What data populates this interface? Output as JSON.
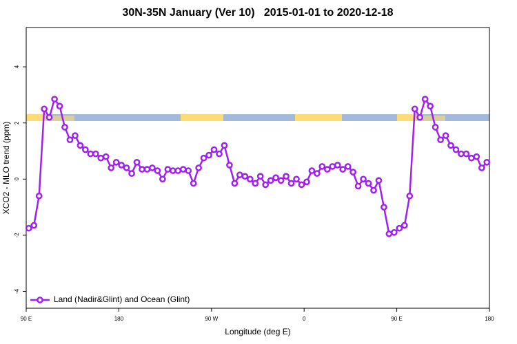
{
  "chart_data": {
    "type": "line",
    "title": "30N-35N January (Ver 10)   2015-01-01 to 2020-12-18",
    "x_label": "Longitude (deg E)",
    "y_label": "XCO2 - MLO trend (ppm)",
    "xlim": [
      90,
      540
    ],
    "ylim": [
      -4.6,
      5.4
    ],
    "xticks": [
      {
        "value": 90,
        "label": "90 E"
      },
      180,
      {
        "value": 270,
        "label": "90 W"
      },
      {
        "value": 360,
        "label": "0"
      },
      {
        "value": 450,
        "label": "90 E"
      },
      {
        "value": 540,
        "label": "180"
      }
    ],
    "yticks": [
      -4,
      -2,
      0,
      2,
      4
    ],
    "legend": "bottomleft",
    "x": [
      92.5,
      97.5,
      102.5,
      107.5,
      112.5,
      117.5,
      122.5,
      127.5,
      132.5,
      137.5,
      142.5,
      147.5,
      152.5,
      157.5,
      162.5,
      167.5,
      172.5,
      177.5,
      182.5,
      187.5,
      192.5,
      197.5,
      202.5,
      207.5,
      212.5,
      217.5,
      222.5,
      227.5,
      232.5,
      237.5,
      242.5,
      247.5,
      252.5,
      257.5,
      262.5,
      267.5,
      272.5,
      277.5,
      282.5,
      287.5,
      292.5,
      297.5,
      302.5,
      307.5,
      312.5,
      317.5,
      322.5,
      327.5,
      332.5,
      337.5,
      342.5,
      347.5,
      352.5,
      357.5,
      362.5,
      367.5,
      372.5,
      377.5,
      382.5,
      387.5,
      392.5,
      397.5,
      402.5,
      407.5,
      412.5,
      417.5,
      422.5,
      427.5,
      432.5,
      437.5,
      442.5,
      447.5,
      452.5,
      457.5,
      462.5,
      467.5,
      472.5,
      477.5,
      482.5,
      487.5,
      492.5,
      497.5,
      502.5,
      507.5,
      512.5,
      517.5,
      522.5,
      527.5,
      532.5,
      537.5
    ],
    "series": [
      {
        "name": "Land (Nadir&Glint) and Ocean (Glint)",
        "color": "#a020f0",
        "values": [
          -1.75,
          -1.65,
          -0.6,
          2.5,
          2.2,
          2.85,
          2.6,
          1.85,
          1.4,
          1.55,
          1.2,
          1.05,
          0.9,
          0.9,
          0.75,
          0.8,
          0.4,
          0.6,
          0.5,
          0.4,
          0.2,
          0.6,
          0.35,
          0.35,
          0.4,
          0.3,
          0.0,
          0.35,
          0.3,
          0.3,
          0.35,
          0.3,
          -0.15,
          0.4,
          0.75,
          0.85,
          1.05,
          0.9,
          1.2,
          0.5,
          -0.15,
          0.15,
          0.1,
          0.0,
          -0.15,
          0.1,
          -0.2,
          -0.05,
          0.05,
          -0.05,
          0.1,
          -0.15,
          0.0,
          -0.2,
          -0.1,
          0.3,
          0.2,
          0.45,
          0.35,
          0.45,
          0.5,
          0.35,
          0.45,
          0.25,
          -0.25,
          0.0,
          -0.15,
          -0.4,
          -0.05,
          -1.0,
          -1.95,
          -1.9,
          -1.75,
          -1.65,
          -0.6,
          2.5,
          2.2,
          2.85,
          2.6,
          1.85,
          1.4,
          1.55,
          1.2,
          1.05,
          0.9,
          0.9,
          0.75,
          0.8,
          0.4,
          0.6
        ]
      }
    ]
  }
}
